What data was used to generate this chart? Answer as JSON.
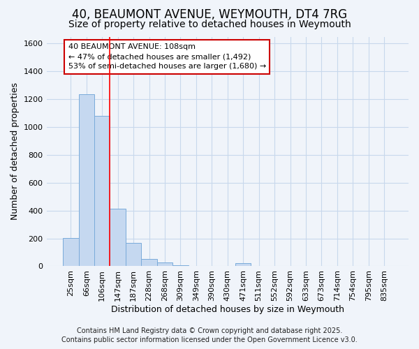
{
  "title_line1": "40, BEAUMONT AVENUE, WEYMOUTH, DT4 7RG",
  "title_line2": "Size of property relative to detached houses in Weymouth",
  "xlabel": "Distribution of detached houses by size in Weymouth",
  "ylabel": "Number of detached properties",
  "bar_categories": [
    "25sqm",
    "66sqm",
    "106sqm",
    "147sqm",
    "187sqm",
    "228sqm",
    "268sqm",
    "309sqm",
    "349sqm",
    "390sqm",
    "430sqm",
    "471sqm",
    "511sqm",
    "552sqm",
    "592sqm",
    "633sqm",
    "673sqm",
    "714sqm",
    "754sqm",
    "795sqm",
    "835sqm"
  ],
  "bar_values": [
    205,
    1235,
    1080,
    415,
    170,
    50,
    25,
    5,
    0,
    0,
    0,
    20,
    0,
    0,
    0,
    0,
    0,
    0,
    0,
    0,
    0
  ],
  "bar_color": "#c5d8f0",
  "bar_edge_color": "#7aabda",
  "vline_x_index": 2.5,
  "vline_color": "red",
  "annotation_text": "40 BEAUMONT AVENUE: 108sqm\n← 47% of detached houses are smaller (1,492)\n53% of semi-detached houses are larger (1,680) →",
  "annotation_facecolor": "white",
  "annotation_edgecolor": "#cc0000",
  "grid_color": "#c8d8ec",
  "bg_color": "#f0f4fa",
  "plot_bg_color": "#f0f4fa",
  "footer_line1": "Contains HM Land Registry data © Crown copyright and database right 2025.",
  "footer_line2": "Contains public sector information licensed under the Open Government Licence v3.0.",
  "ylim": [
    0,
    1650
  ],
  "yticks": [
    0,
    200,
    400,
    600,
    800,
    1000,
    1200,
    1400,
    1600
  ],
  "title_fontsize": 12,
  "subtitle_fontsize": 10,
  "ylabel_fontsize": 9,
  "xlabel_fontsize": 9,
  "tick_fontsize": 8,
  "annotation_fontsize": 8,
  "footer_fontsize": 7
}
